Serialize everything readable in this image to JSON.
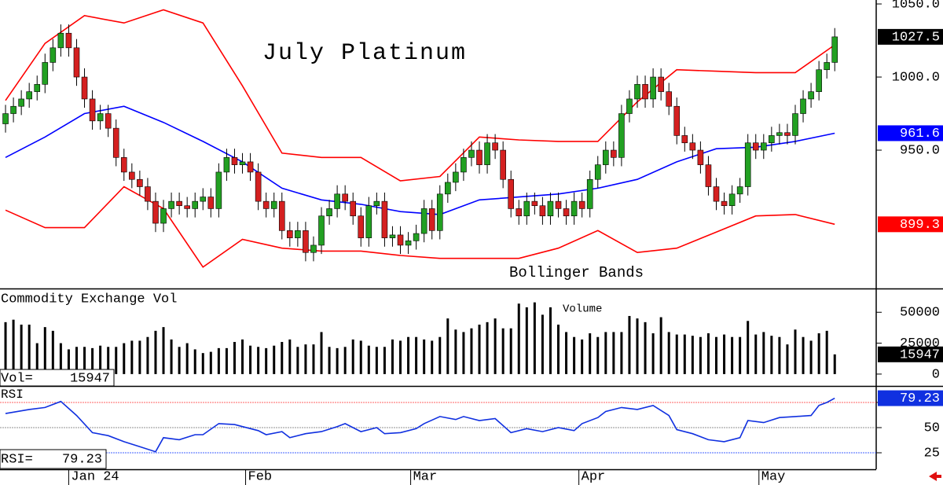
{
  "chart_data": [
    {
      "type": "candlestick",
      "title": "July Platinum",
      "annotation": "Bollinger Bands",
      "up_color": "#22a022",
      "down_color": "#d42020",
      "open": [
        968,
        975,
        980,
        985,
        990,
        995,
        1010,
        1020,
        1030,
        1020,
        1000,
        985,
        970,
        975,
        965,
        945,
        935,
        930,
        925,
        915,
        900,
        910,
        915,
        912,
        910,
        915,
        918,
        910,
        935,
        945,
        940,
        942,
        935,
        915,
        910,
        915,
        895,
        890,
        895,
        880,
        885,
        905,
        910,
        920,
        915,
        905,
        890,
        912,
        915,
        890,
        892,
        885,
        888,
        893,
        910,
        895,
        920,
        928,
        935,
        945,
        950,
        940,
        955,
        950,
        930,
        910,
        905,
        915,
        912,
        905,
        915,
        910,
        905,
        915,
        910,
        930,
        940,
        950,
        945,
        975,
        985,
        995,
        985,
        1000,
        990,
        980,
        960,
        955,
        950,
        940,
        925,
        915,
        912,
        920,
        925,
        955,
        950,
        955,
        960,
        962,
        960,
        975,
        985,
        990,
        1005,
        1010
      ],
      "high": [
        981,
        986,
        991,
        996,
        1001,
        1016,
        1026,
        1036,
        1036,
        1026,
        1006,
        991,
        981,
        981,
        971,
        951,
        941,
        936,
        931,
        921,
        916,
        921,
        921,
        918,
        921,
        924,
        924,
        941,
        951,
        951,
        948,
        948,
        941,
        921,
        921,
        921,
        901,
        901,
        901,
        891,
        911,
        916,
        926,
        926,
        921,
        911,
        918,
        921,
        921,
        898,
        898,
        894,
        899,
        916,
        916,
        926,
        934,
        941,
        951,
        956,
        956,
        961,
        961,
        956,
        936,
        916,
        921,
        921,
        918,
        921,
        921,
        916,
        921,
        921,
        936,
        946,
        956,
        956,
        981,
        991,
        1001,
        1001,
        1006,
        1006,
        996,
        986,
        966,
        961,
        956,
        946,
        931,
        921,
        926,
        931,
        961,
        961,
        961,
        966,
        968,
        968,
        981,
        991,
        996,
        1011,
        1016,
        1033.5
      ],
      "low": [
        962,
        969,
        974,
        979,
        984,
        989,
        1004,
        1014,
        1014,
        994,
        979,
        964,
        964,
        959,
        939,
        929,
        924,
        919,
        909,
        894,
        894,
        904,
        906,
        904,
        904,
        909,
        904,
        904,
        929,
        934,
        934,
        929,
        909,
        904,
        904,
        889,
        884,
        884,
        874,
        874,
        879,
        899,
        904,
        909,
        899,
        884,
        884,
        906,
        884,
        884,
        879,
        879,
        882,
        887,
        889,
        889,
        914,
        922,
        929,
        939,
        934,
        934,
        944,
        924,
        904,
        899,
        899,
        906,
        899,
        899,
        904,
        899,
        899,
        904,
        904,
        924,
        934,
        939,
        939,
        969,
        979,
        979,
        979,
        984,
        974,
        954,
        949,
        944,
        934,
        919,
        909,
        906,
        906,
        914,
        919,
        944,
        944,
        949,
        954,
        954,
        954,
        969,
        979,
        984,
        999,
        1004
      ],
      "close": [
        975,
        980,
        985,
        990,
        995,
        1010,
        1020,
        1030,
        1020,
        1000,
        985,
        970,
        975,
        965,
        945,
        935,
        930,
        925,
        915,
        900,
        910,
        915,
        912,
        910,
        915,
        918,
        910,
        935,
        945,
        940,
        942,
        935,
        915,
        910,
        915,
        895,
        890,
        895,
        880,
        885,
        905,
        910,
        920,
        915,
        905,
        890,
        912,
        915,
        890,
        892,
        885,
        888,
        893,
        910,
        895,
        920,
        928,
        935,
        945,
        950,
        940,
        955,
        950,
        930,
        910,
        905,
        915,
        912,
        905,
        915,
        910,
        905,
        915,
        910,
        930,
        940,
        950,
        945,
        975,
        985,
        995,
        985,
        1000,
        990,
        980,
        960,
        955,
        950,
        940,
        925,
        915,
        912,
        920,
        925,
        955,
        950,
        955,
        960,
        962,
        960,
        975,
        985,
        990,
        1005,
        1010,
        1027.5
      ],
      "bands": [
        {
          "color": "#ff0000",
          "x": [
            0,
            5,
            10,
            15,
            20,
            25,
            30,
            35,
            40,
            45,
            50,
            55,
            60,
            65,
            70,
            75,
            80,
            85,
            90,
            95,
            100,
            105
          ],
          "values": [
            984,
            1023,
            1042,
            1037,
            1046,
            1037,
            994,
            948,
            945,
            945,
            929,
            932,
            959,
            957,
            956,
            956,
            983,
            1005,
            1004,
            1003,
            1003,
            1022
          ]
        },
        {
          "color": "#0000ff",
          "x": [
            0,
            5,
            10,
            15,
            20,
            25,
            30,
            35,
            40,
            45,
            50,
            55,
            60,
            65,
            70,
            75,
            80,
            85,
            90,
            95,
            100,
            105
          ],
          "values": [
            945,
            959,
            975,
            980,
            969,
            956,
            942,
            924,
            916,
            913,
            908,
            906,
            916,
            918,
            920,
            924,
            930,
            942,
            951,
            952,
            956,
            961.6
          ]
        },
        {
          "color": "#ff0000",
          "x": [
            0,
            5,
            10,
            15,
            20,
            25,
            30,
            35,
            40,
            45,
            50,
            55,
            60,
            65,
            70,
            75,
            80,
            85,
            90,
            95,
            100,
            105
          ],
          "values": [
            909,
            897,
            897,
            925,
            910,
            870,
            889,
            883,
            881,
            881,
            878,
            876,
            876,
            876,
            883,
            895,
            880,
            883,
            894,
            905,
            906,
            899.3
          ]
        }
      ],
      "xlim": [
        -0.7,
        110.25
      ],
      "xticks": [
        {
          "value": 8,
          "label": "Jan 24"
        },
        {
          "value": 30.4,
          "label": "Feb"
        },
        {
          "value": 51.3,
          "label": "Mar"
        },
        {
          "value": 72.6,
          "label": "Apr"
        },
        {
          "value": 95.4,
          "label": "May"
        }
      ],
      "ylim": [
        855.4,
        1052.7
      ],
      "yticks": [
        {
          "value": 1050,
          "label": "1050.0"
        },
        {
          "value": 1000,
          "label": "1000.0"
        },
        {
          "value": 950,
          "label": "950.0"
        }
      ]
    },
    {
      "type": "bar",
      "title": "Commodity Exchange Vol",
      "annotation": "Volume",
      "readout_label": "Vol=",
      "color": "#000000",
      "values": [
        42000,
        44000,
        40000,
        40000,
        25000,
        38000,
        35000,
        25000,
        20000,
        22000,
        22000,
        21000,
        23000,
        22000,
        22000,
        25000,
        27000,
        27000,
        30000,
        35000,
        38000,
        28000,
        22000,
        25000,
        20000,
        17000,
        18000,
        21000,
        21000,
        26000,
        28000,
        23000,
        22000,
        21000,
        23000,
        26000,
        28000,
        22000,
        24000,
        24000,
        34000,
        22000,
        21000,
        22000,
        28000,
        27000,
        23000,
        22000,
        22000,
        28000,
        27000,
        30000,
        30000,
        28000,
        27000,
        30000,
        45000,
        36000,
        34000,
        37000,
        40000,
        42000,
        45000,
        37000,
        37000,
        57000,
        54000,
        58000,
        48000,
        54000,
        40000,
        34000,
        30000,
        28000,
        33000,
        30000,
        34000,
        34000,
        34000,
        47000,
        45000,
        42000,
        33000,
        46000,
        34000,
        32000,
        32000,
        31000,
        30000,
        33000,
        30000,
        32000,
        30000,
        30000,
        43000,
        32000,
        34000,
        31000,
        30000,
        24000,
        36000,
        30000,
        27000,
        33000,
        35000,
        15947
      ],
      "ylim": [
        -9600,
        68600
      ],
      "yticks": [
        50000,
        25000,
        0
      ]
    },
    {
      "type": "line",
      "title": "RSI",
      "readout_label": "RSI=",
      "color": "#1030e0",
      "x": [
        0,
        3,
        5,
        7,
        9,
        11,
        13,
        15,
        17,
        19,
        20,
        22,
        24,
        25,
        27,
        29,
        30,
        32,
        33,
        35,
        36,
        38,
        40,
        42,
        43,
        45,
        47,
        48,
        50,
        52,
        53,
        55,
        57,
        58,
        60,
        62,
        64,
        66,
        68,
        70,
        72,
        73,
        75,
        76,
        78,
        80,
        82,
        84,
        85,
        87,
        89,
        91,
        93,
        94,
        96,
        98,
        100,
        102,
        103,
        104,
        105
      ],
      "values": [
        64,
        68,
        70,
        76,
        62,
        45,
        42,
        36,
        31,
        26,
        40,
        38,
        43,
        43,
        54,
        53,
        51,
        47,
        43,
        46,
        40,
        44,
        46,
        51,
        54,
        46,
        50,
        44,
        45,
        49,
        54,
        61,
        58,
        61,
        57,
        59,
        45,
        49,
        46,
        50,
        47,
        54,
        60,
        66,
        70,
        68,
        72,
        62,
        48,
        44,
        38,
        36,
        40,
        57,
        55,
        60,
        61,
        62,
        72,
        75,
        79.23
      ],
      "ylim": [
        8.6,
        90.6
      ],
      "yticks": [
        75,
        50,
        25
      ],
      "grid_colors": [
        "#ff6060",
        "#909090",
        "#4060ff"
      ]
    }
  ]
}
